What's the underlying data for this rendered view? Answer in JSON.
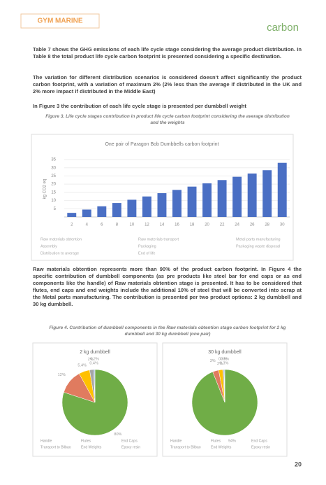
{
  "header": {
    "brand": "GYM MARINE",
    "partner": "carbon"
  },
  "paragraphs": [
    "Table 7 shows the GHG emissions of each life cycle stage considering the average product distribution. In Table 8 the total product life cycle carbon footprint is presented considering a specific destination.",
    "The variation for different distribution scenarios is considered doesn't affect significantly the product carbon footprint, with a variation of maximum 2% (2% less than the average if distributed in the UK and 2% more impact if distributed in the Middle East)",
    "In Figure 3 the contribution of each life cycle stage is presented per dumbbell weight",
    "Raw materials obtention represents more than 90% of the product carbon footprint. In Figure 4 the specific contribution of dumbbell components (as pre products like steel bar for end caps or as end components like the handle) of Raw materials obtention stage is presented. It has to be considered that flutes, end caps and end weights include the additional 10% of steel that will be converted into scrap at the Metal parts manufacturing. The contribution is presented per two product options: 2 kg dumbbell and 30 kg dumbbell."
  ],
  "captions": [
    "Figure 3. Life cycle stages contribution in product life cycle carbon footprint considering the average distribution and the weights",
    "Figure 4. Contribution of dumbbell components in the Raw materials obtention stage carbon footprint for 2 kg dumbbell and 30 kg dumbbell (one pair)"
  ],
  "page_number": "20",
  "chart_data": [
    {
      "type": "bar",
      "title": "One pair of Paragon Bob Dumbbells carbon footprint",
      "y_label": "kg CO2 eq",
      "categories": [
        "2",
        "4",
        "6",
        "8",
        "10",
        "12",
        "14",
        "16",
        "18",
        "20",
        "22",
        "24",
        "26",
        "28",
        "30"
      ],
      "values": [
        2.5,
        4.5,
        6.5,
        8.5,
        10.5,
        12.5,
        14.5,
        16.5,
        18.5,
        20.5,
        22.5,
        24.5,
        26.5,
        28.5,
        33
      ],
      "color": "#4a6fc4",
      "ylim": [
        0,
        35
      ],
      "yticks": [
        5,
        10,
        15,
        20,
        25,
        30,
        35
      ],
      "grid": true,
      "legend": [
        "Raw materials obtention",
        "Assembly",
        "Distribution to average",
        "Raw materials transport",
        "Packaging",
        "End of life",
        "Metal parts manufacturing",
        "Packaging waste disposal"
      ]
    },
    {
      "type": "pie",
      "title": "2 kg dumbbell",
      "categories": [
        "Handle",
        "Flutes",
        "End Caps",
        "Transport to Bilbao",
        "End Weights",
        "Epoxy resin"
      ],
      "values": [
        80,
        12,
        5.4,
        2,
        0.4,
        0.2
      ],
      "value_labels": [
        "80%",
        "12%",
        "5.4%",
        "2%",
        "0.4%",
        "0.2%"
      ],
      "colors": [
        "#70ad47",
        "#e07b5f",
        "#ffc000",
        "#a5a5a5",
        "#5b9bd5",
        "#264478"
      ]
    },
    {
      "type": "pie",
      "title": "30 kg dumbbell",
      "categories": [
        "Handle",
        "Flutes",
        "End Caps",
        "Transport to Bilbao",
        "End Weights",
        "Epoxy resin"
      ],
      "values": [
        94,
        3,
        2,
        0.6,
        0.3,
        0.1
      ],
      "value_labels": [
        "94%",
        "3%",
        "2%",
        "0.6%",
        "0.3%",
        "0.1%"
      ],
      "colors": [
        "#70ad47",
        "#e07b5f",
        "#ffc000",
        "#a5a5a5",
        "#5b9bd5",
        "#264478"
      ]
    }
  ]
}
